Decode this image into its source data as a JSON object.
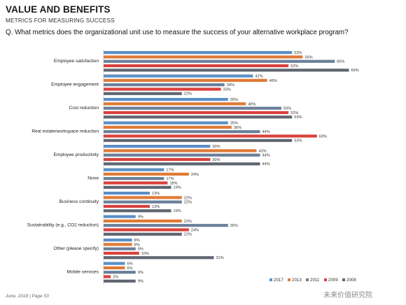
{
  "header": {
    "title": "VALUE AND BENEFITS",
    "subtitle": "METRICS FOR MEASURING SUCCESS",
    "question": "Q. What metrics does the organizational unit use to measure the success of your alternative workplace program?"
  },
  "footer": {
    "text": "June, 2018  |  Page 53",
    "watermark": "未来价值研究院"
  },
  "chart_data": {
    "type": "bar",
    "orientation": "horizontal",
    "categories": [
      "Employee satisfaction",
      "Employee engagement",
      "Cost reduction",
      "Real estate/workspace reduction",
      "Employee productivity",
      "None",
      "Business continuity",
      "Sustainability (e.g., CO2 reduction)",
      "Other (please specify)",
      "Mobile services"
    ],
    "series": [
      {
        "name": "2017",
        "color": "#5b8fc7",
        "values": [
          53,
          42,
          35,
          35,
          30,
          17,
          13,
          9,
          8,
          6
        ]
      },
      {
        "name": "2013",
        "color": "#e07a35",
        "values": [
          56,
          46,
          40,
          36,
          43,
          24,
          22,
          22,
          8,
          6
        ]
      },
      {
        "name": "2011",
        "color": "#6a7f99",
        "values": [
          65,
          34,
          50,
          44,
          44,
          17,
          22,
          35,
          9,
          9
        ]
      },
      {
        "name": "2009",
        "color": "#d9413d",
        "values": [
          52,
          33,
          52,
          60,
          30,
          18,
          13,
          24,
          10,
          2
        ]
      },
      {
        "name": "2008",
        "color": "#5f6670",
        "values": [
          69,
          22,
          53,
          53,
          44,
          19,
          19,
          22,
          31,
          9
        ]
      }
    ],
    "value_suffix": "%",
    "legend_position": "bottom-right",
    "grid": false
  }
}
